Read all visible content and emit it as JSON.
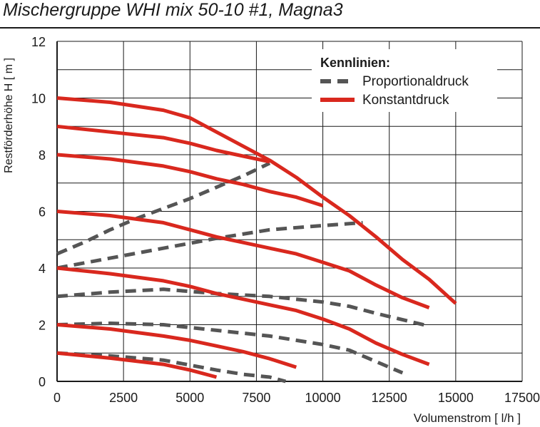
{
  "chart_data": {
    "type": "line",
    "title": "Mischergruppe WHI mix 50-10 #1, Magna3",
    "xlabel": "Volumenstrom [ l/h ]",
    "ylabel": "Restförderhöhe H [ m ]",
    "xlim": [
      0,
      17500
    ],
    "ylim": [
      0,
      12
    ],
    "xticks": [
      "0",
      "2500",
      "5000",
      "7500",
      "10000",
      "12500",
      "15000",
      "17500"
    ],
    "yticks": [
      "0",
      "2",
      "4",
      "6",
      "8",
      "10",
      "12"
    ],
    "grid": true,
    "legend": {
      "title": "Kennlinien:",
      "position": "top-right",
      "entries": [
        {
          "label": "Proportionaldruck",
          "style": "dashed",
          "color": "#555555"
        },
        {
          "label": "Konstantdruck",
          "style": "solid",
          "color": "#d9281e"
        }
      ]
    },
    "series": [
      {
        "group": "Konstantdruck",
        "style": "solid",
        "color": "#d9281e",
        "points": [
          [
            0,
            10
          ],
          [
            2000,
            9.85
          ],
          [
            4000,
            9.57
          ],
          [
            5000,
            9.3
          ],
          [
            6000,
            8.8
          ],
          [
            7000,
            8.3
          ],
          [
            8000,
            7.8
          ],
          [
            9000,
            7.2
          ],
          [
            10000,
            6.5
          ],
          [
            11000,
            5.85
          ],
          [
            12000,
            5.1
          ],
          [
            13000,
            4.3
          ],
          [
            14000,
            3.6
          ],
          [
            15000,
            2.75
          ]
        ]
      },
      {
        "group": "Konstantdruck",
        "style": "solid",
        "color": "#d9281e",
        "points": [
          [
            0,
            9
          ],
          [
            2000,
            8.8
          ],
          [
            4000,
            8.6
          ],
          [
            5000,
            8.4
          ],
          [
            6000,
            8.15
          ],
          [
            7000,
            7.95
          ],
          [
            8000,
            7.75
          ]
        ]
      },
      {
        "group": "Konstantdruck",
        "style": "solid",
        "color": "#d9281e",
        "points": [
          [
            0,
            8
          ],
          [
            2000,
            7.85
          ],
          [
            4000,
            7.6
          ],
          [
            5000,
            7.4
          ],
          [
            6000,
            7.15
          ],
          [
            7000,
            6.95
          ],
          [
            8000,
            6.7
          ],
          [
            9000,
            6.5
          ],
          [
            10000,
            6.2
          ]
        ]
      },
      {
        "group": "Konstantdruck",
        "style": "solid",
        "color": "#d9281e",
        "points": [
          [
            0,
            6
          ],
          [
            2000,
            5.85
          ],
          [
            4000,
            5.6
          ],
          [
            5000,
            5.35
          ],
          [
            6000,
            5.1
          ],
          [
            7000,
            4.9
          ],
          [
            8000,
            4.7
          ],
          [
            9000,
            4.5
          ],
          [
            10000,
            4.2
          ],
          [
            11000,
            3.9
          ],
          [
            12000,
            3.4
          ],
          [
            13000,
            2.95
          ],
          [
            14000,
            2.6
          ]
        ]
      },
      {
        "group": "Konstantdruck",
        "style": "solid",
        "color": "#d9281e",
        "points": [
          [
            0,
            4
          ],
          [
            2000,
            3.8
          ],
          [
            4000,
            3.55
          ],
          [
            5000,
            3.35
          ],
          [
            6000,
            3.1
          ],
          [
            7000,
            2.9
          ],
          [
            8000,
            2.7
          ],
          [
            9000,
            2.5
          ],
          [
            10000,
            2.2
          ],
          [
            11000,
            1.85
          ],
          [
            12000,
            1.35
          ],
          [
            13000,
            0.95
          ],
          [
            14000,
            0.6
          ]
        ]
      },
      {
        "group": "Konstantdruck",
        "style": "solid",
        "color": "#d9281e",
        "points": [
          [
            0,
            2
          ],
          [
            2000,
            1.85
          ],
          [
            4000,
            1.6
          ],
          [
            5000,
            1.45
          ],
          [
            6000,
            1.25
          ],
          [
            7000,
            1.05
          ],
          [
            8000,
            0.8
          ],
          [
            9000,
            0.5
          ]
        ]
      },
      {
        "group": "Konstantdruck",
        "style": "solid",
        "color": "#d9281e",
        "points": [
          [
            0,
            1
          ],
          [
            2000,
            0.82
          ],
          [
            4000,
            0.6
          ],
          [
            5000,
            0.4
          ],
          [
            6000,
            0.15
          ]
        ]
      },
      {
        "group": "Proportionaldruck",
        "style": "dashed",
        "color": "#555555",
        "points": [
          [
            0,
            4.5
          ],
          [
            1000,
            4.9
          ],
          [
            2000,
            5.35
          ],
          [
            3000,
            5.75
          ],
          [
            4000,
            6.1
          ],
          [
            5000,
            6.45
          ],
          [
            6000,
            6.85
          ],
          [
            7000,
            7.25
          ],
          [
            8000,
            7.7
          ]
        ]
      },
      {
        "group": "Proportionaldruck",
        "style": "dashed",
        "color": "#555555",
        "points": [
          [
            0,
            4
          ],
          [
            2000,
            4.35
          ],
          [
            4000,
            4.7
          ],
          [
            6000,
            5.05
          ],
          [
            8000,
            5.35
          ],
          [
            10000,
            5.5
          ],
          [
            11500,
            5.6
          ]
        ]
      },
      {
        "group": "Proportionaldruck",
        "style": "dashed",
        "color": "#555555",
        "points": [
          [
            0,
            3
          ],
          [
            2000,
            3.15
          ],
          [
            4000,
            3.25
          ],
          [
            6000,
            3.1
          ],
          [
            8000,
            3.0
          ],
          [
            10000,
            2.8
          ],
          [
            11000,
            2.65
          ],
          [
            12000,
            2.4
          ],
          [
            14000,
            1.95
          ]
        ]
      },
      {
        "group": "Proportionaldruck",
        "style": "dashed",
        "color": "#555555",
        "points": [
          [
            0,
            2
          ],
          [
            2000,
            2.05
          ],
          [
            4000,
            2.0
          ],
          [
            6000,
            1.8
          ],
          [
            8000,
            1.6
          ],
          [
            10000,
            1.3
          ],
          [
            11000,
            1.1
          ],
          [
            12000,
            0.7
          ],
          [
            13000,
            0.3
          ]
        ]
      },
      {
        "group": "Proportionaldruck",
        "style": "dashed",
        "color": "#555555",
        "points": [
          [
            0,
            1
          ],
          [
            2000,
            0.9
          ],
          [
            4000,
            0.75
          ],
          [
            6000,
            0.4
          ],
          [
            7000,
            0.25
          ],
          [
            8000,
            0.15
          ],
          [
            8600,
            0.0
          ]
        ]
      }
    ]
  }
}
